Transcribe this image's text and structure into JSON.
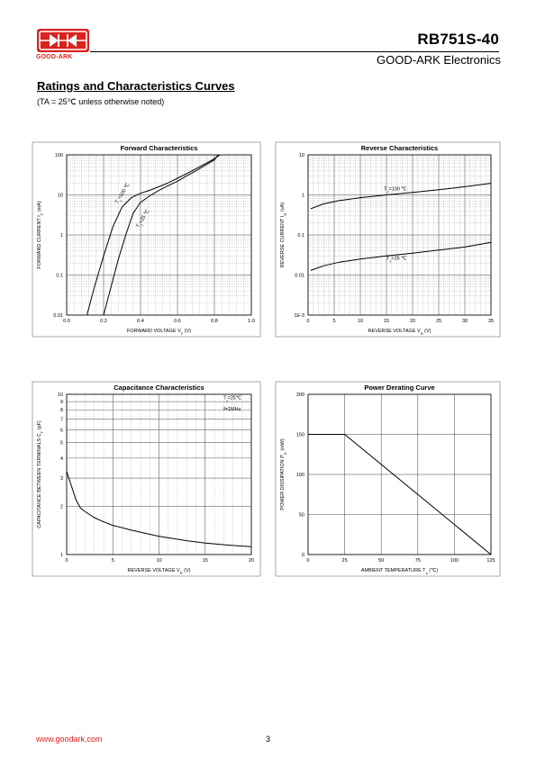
{
  "header": {
    "logo_text": "GOOD-ARK",
    "part_number": "RB751S-40",
    "company": "GOOD-ARK Electronics"
  },
  "section": {
    "title": "Ratings and Characteristics Curves",
    "note": "(TA = 25℃ unless otherwise noted)"
  },
  "footer": {
    "url": "www.goodark.com",
    "page": "3"
  },
  "colors": {
    "brand_red": "#d8231f",
    "grid": "#999999",
    "curve": "#000000"
  },
  "chart_data": [
    {
      "id": "forward",
      "type": "line",
      "title": "Forward    Characteristics",
      "xlabel": "FORWARD VOLTAGE",
      "xsym": "V",
      "xsub": "F",
      "xunit": "(V)",
      "ylabel": "FORWARD CURRENT",
      "ysym": "I",
      "ysub": "F",
      "yunit": "(mA)",
      "xlim": [
        0.0,
        1.0
      ],
      "ylim": [
        0.01,
        100
      ],
      "yscale": "log",
      "grid": true,
      "xticks": [
        "0.0",
        "0.2",
        "0.4",
        "0.6",
        "0.8",
        "1.0"
      ],
      "yticks": [
        "0.01",
        "0.1",
        "1",
        "10",
        "100"
      ],
      "series": [
        {
          "points": [
            [
              0.11,
              0.01
            ],
            [
              0.15,
              0.05
            ],
            [
              0.2,
              0.3
            ],
            [
              0.25,
              1.6
            ],
            [
              0.3,
              5
            ],
            [
              0.35,
              8.5
            ],
            [
              0.4,
              11
            ],
            [
              0.45,
              13
            ],
            [
              0.5,
              16
            ],
            [
              0.55,
              20
            ],
            [
              0.6,
              26
            ],
            [
              0.65,
              34
            ],
            [
              0.7,
              45
            ],
            [
              0.75,
              60
            ],
            [
              0.8,
              80
            ],
            [
              0.83,
              100
            ]
          ]
        },
        {
          "points": [
            [
              0.2,
              0.01
            ],
            [
              0.24,
              0.05
            ],
            [
              0.28,
              0.25
            ],
            [
              0.32,
              1
            ],
            [
              0.36,
              3.5
            ],
            [
              0.4,
              6.5
            ],
            [
              0.45,
              9.5
            ],
            [
              0.5,
              13
            ],
            [
              0.55,
              17
            ],
            [
              0.6,
              22
            ],
            [
              0.65,
              30
            ],
            [
              0.7,
              40
            ],
            [
              0.75,
              55
            ],
            [
              0.8,
              75
            ],
            [
              0.82,
              100
            ]
          ]
        }
      ],
      "annotations": [
        {
          "text": "T",
          "sub": "J",
          "after": "=100 ℃"
        },
        {
          "text": "T",
          "sub": "J",
          "after": "=25 ℃"
        }
      ]
    },
    {
      "id": "reverse",
      "type": "line",
      "title": "Reverse    Characteristics",
      "xlabel": "REVERSE VOLTAGE",
      "xsym": "V",
      "xsub": "R",
      "xunit": "(V)",
      "ylabel": "REVERSE CURRENT",
      "ysym": "I",
      "ysub": "R",
      "yunit": "(uA)",
      "xlim": [
        0,
        35
      ],
      "ylim": [
        0.001,
        10
      ],
      "yscale": "log",
      "grid": true,
      "xticks": [
        "0",
        "5",
        "10",
        "15",
        "20",
        "25",
        "30",
        "35"
      ],
      "yticks": [
        "1E-3",
        "0.01",
        "0.1",
        "1",
        "10"
      ],
      "series": [
        {
          "points": [
            [
              0.5,
              0.45
            ],
            [
              3,
              0.6
            ],
            [
              6,
              0.72
            ],
            [
              10,
              0.85
            ],
            [
              15,
              1.0
            ],
            [
              20,
              1.15
            ],
            [
              25,
              1.35
            ],
            [
              30,
              1.6
            ],
            [
              35,
              1.95
            ]
          ]
        },
        {
          "points": [
            [
              0.5,
              0.013
            ],
            [
              3,
              0.017
            ],
            [
              6,
              0.021
            ],
            [
              10,
              0.025
            ],
            [
              15,
              0.03
            ],
            [
              20,
              0.035
            ],
            [
              25,
              0.042
            ],
            [
              30,
              0.05
            ],
            [
              35,
              0.065
            ]
          ]
        }
      ],
      "annotations": [
        {
          "text": "T",
          "sub": "J",
          "after": "=100 ℃"
        },
        {
          "text": "T",
          "sub": "J",
          "after": "=25 ℃"
        }
      ]
    },
    {
      "id": "capacitance",
      "type": "line",
      "title": "Capacitance Characteristics",
      "xlabel": "REVERSE VOLTAGE",
      "xsym": "V",
      "xsub": "R",
      "xunit": "(V)",
      "ylabel": "CAPACITANCE BETWEEN TERMINALS",
      "ysym": "C",
      "ysub": "T",
      "yunit": "(pF)",
      "xlim": [
        0,
        20
      ],
      "ylim": [
        1,
        10
      ],
      "yscale": "log",
      "grid": true,
      "xticks": [
        "0",
        "5",
        "10",
        "15",
        "20"
      ],
      "yticks": [
        "1",
        "2",
        "3",
        "4",
        "5",
        "6",
        "7",
        "8",
        "9",
        "10"
      ],
      "series": [
        {
          "points": [
            [
              0,
              3.3
            ],
            [
              0.5,
              2.7
            ],
            [
              1,
              2.2
            ],
            [
              1.5,
              1.95
            ],
            [
              2,
              1.85
            ],
            [
              3,
              1.7
            ],
            [
              4,
              1.6
            ],
            [
              5,
              1.52
            ],
            [
              7,
              1.42
            ],
            [
              10,
              1.3
            ],
            [
              13,
              1.22
            ],
            [
              15,
              1.18
            ],
            [
              18,
              1.14
            ],
            [
              20,
              1.12
            ]
          ]
        }
      ],
      "annotations": [
        {
          "text": "T",
          "sub": "j",
          "after": "=25℃"
        },
        {
          "text": "f=1MHz",
          "sub": "",
          "after": ""
        }
      ]
    },
    {
      "id": "derating",
      "type": "line",
      "title": "Power Derating Curve",
      "xlabel": "AMBIENT TEMPERATURE",
      "xsym": "T",
      "xsub": "a",
      "xunit": "(℃)",
      "ylabel": "POWER DISSIPATION",
      "ysym": "P",
      "ysub": "D",
      "yunit": "(mW)",
      "xlim": [
        0,
        125
      ],
      "ylim": [
        0,
        200
      ],
      "yscale": "linear",
      "grid": true,
      "xticks": [
        "0",
        "25",
        "50",
        "75",
        "100",
        "125"
      ],
      "yticks": [
        "0",
        "50",
        "100",
        "150",
        "200"
      ],
      "series": [
        {
          "points": [
            [
              0,
              150
            ],
            [
              25,
              150
            ],
            [
              125,
              0
            ]
          ]
        }
      ],
      "annotations": []
    }
  ]
}
